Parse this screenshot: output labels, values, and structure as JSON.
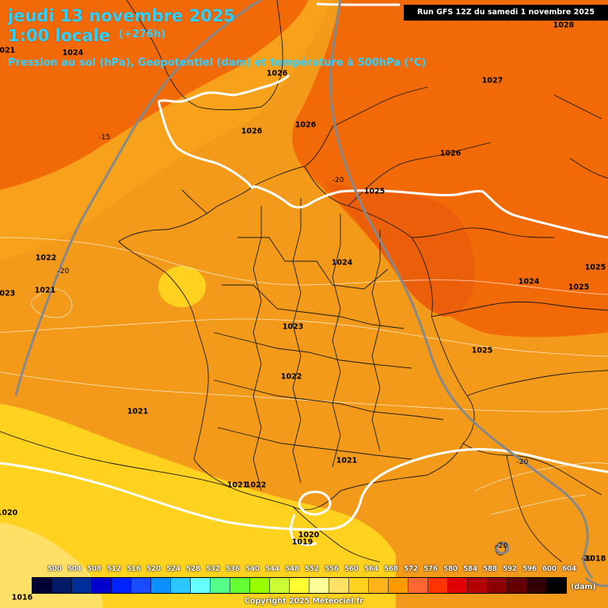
{
  "header": {
    "date": "jeudi 13 novembre 2025",
    "time": "1:00 locale",
    "offset": "(+276h)",
    "subtitle": "Pression au sol (hPa), Geopotentiel (dam) et température à 500hPa (°C)",
    "run": "Run GFS 12Z du samedi 1 novembre 2025"
  },
  "colors": {
    "zone_yellow": "#ffd21f",
    "zone_light_yellow": "#ffe066",
    "zone_orange_light": "#f8a21c",
    "zone_orange": "#f39a1a",
    "zone_dark_orange": "#f26a07",
    "zone_red_orange": "#ec5f0a",
    "isobar": "#ffffff",
    "isotherm": "#888888",
    "border": "#1a1a1a",
    "title": "#2fd0ff"
  },
  "pressure_labels": [
    "1028",
    "1027",
    "1026",
    "1026",
    "1026",
    "1026",
    "1024",
    "1025",
    "1024",
    "1024",
    "1025",
    "1025",
    "1022",
    "1021",
    "1023",
    "1025",
    "1022",
    "1021",
    "1021",
    "1021",
    "1022",
    "1019",
    "1020",
    "1020",
    "1018",
    "1016",
    "1023",
    "1021"
  ],
  "temp_labels": [
    "-15",
    "-20",
    "-20",
    "-20",
    "-20",
    "-20"
  ],
  "legend": {
    "unit": "(dam)",
    "ticks": [
      "500",
      "504",
      "508",
      "512",
      "516",
      "520",
      "524",
      "528",
      "532",
      "536",
      "540",
      "544",
      "548",
      "552",
      "556",
      "560",
      "564",
      "568",
      "572",
      "576",
      "580",
      "584",
      "588",
      "592",
      "596",
      "600",
      "604"
    ],
    "swatch_colors": [
      "#000033",
      "#001a66",
      "#002e99",
      "#0000cc",
      "#0022ff",
      "#1a4bff",
      "#0a90ff",
      "#29c6ff",
      "#66ffff",
      "#55ff88",
      "#66ff33",
      "#99ff00",
      "#ccff33",
      "#ffff33",
      "#ffff99",
      "#ffe066",
      "#ffd21f",
      "#ffb31a",
      "#ff9900",
      "#ff6633",
      "#ff3300",
      "#e00000",
      "#b30000",
      "#8c0000",
      "#660000",
      "#330000",
      "#000000"
    ]
  },
  "copyright": "Copyright 2025 Meteociel.fr"
}
